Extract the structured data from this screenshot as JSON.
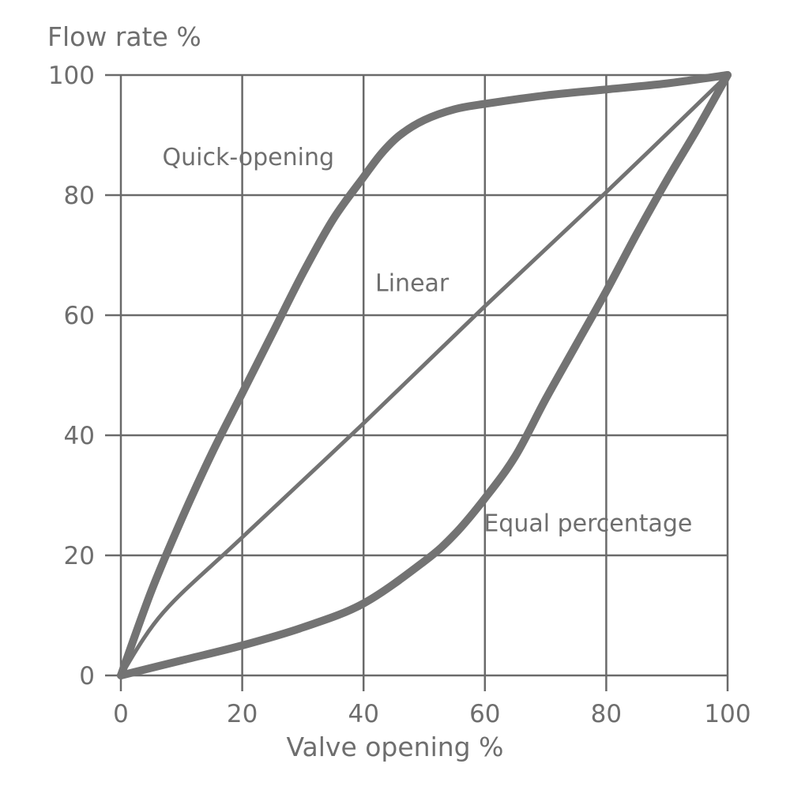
{
  "chart_data": {
    "type": "line",
    "title": "",
    "xlabel": "Valve opening %",
    "ylabel": "Flow rate %",
    "xlim": [
      0,
      100
    ],
    "ylim": [
      0,
      100
    ],
    "xticks": [
      0,
      20,
      40,
      60,
      80,
      100
    ],
    "yticks": [
      0,
      20,
      40,
      60,
      80,
      100
    ],
    "grid": true,
    "legend": "none",
    "line_color": "#737373",
    "series": [
      {
        "name": "Quick-opening",
        "x": [
          0,
          5,
          10,
          15,
          20,
          25,
          30,
          35,
          40,
          43,
          46,
          50,
          55,
          60,
          70,
          80,
          90,
          100
        ],
        "y": [
          0,
          14,
          26,
          37,
          47,
          57,
          67,
          76,
          83,
          87,
          90,
          92.5,
          94.3,
          95.2,
          96.6,
          97.6,
          98.6,
          100
        ]
      },
      {
        "name": "Linear",
        "x": [
          0,
          7,
          20,
          40,
          60,
          80,
          100
        ],
        "y": [
          0,
          10.5,
          23,
          42,
          61.5,
          80.5,
          100
        ]
      },
      {
        "name": "Equal percentage",
        "x": [
          0,
          10,
          20,
          30,
          40,
          50,
          55,
          60,
          65,
          70,
          75,
          80,
          85,
          90,
          95,
          100
        ],
        "y": [
          0,
          2.5,
          5,
          8,
          12,
          19,
          23.5,
          29.5,
          36.5,
          46,
          55,
          64,
          73.5,
          82.5,
          91,
          100
        ]
      }
    ],
    "annotations": [
      {
        "text": "Quick-opening",
        "x": 21,
        "y": 85
      },
      {
        "text": "Linear",
        "x": 48,
        "y": 64
      },
      {
        "text": "Equal percentage",
        "x": 77,
        "y": 24
      }
    ]
  }
}
